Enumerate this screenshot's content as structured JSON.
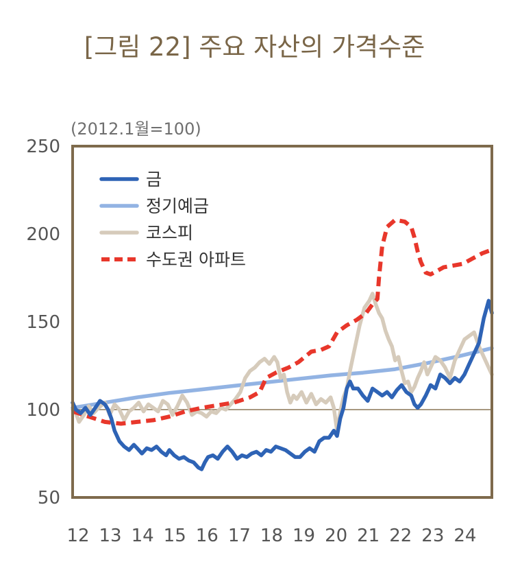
{
  "title": "[그림 22] 주요 자산의 가격수준",
  "unit_note": "(2012.1월=100)",
  "chart_data": {
    "type": "line",
    "title": "[그림 22] 주요 자산의 가격수준",
    "subtitle": "(2012.1월=100)",
    "xlabel": "",
    "ylabel": "",
    "ylim": [
      50,
      250
    ],
    "yticks": [
      50,
      100,
      150,
      200,
      250
    ],
    "xlim": [
      2012,
      2025
    ],
    "xtick_labels": [
      "12",
      "13",
      "14",
      "15",
      "16",
      "17",
      "18",
      "19",
      "20",
      "21",
      "22",
      "23",
      "24"
    ],
    "xtick_values": [
      2012,
      2013,
      2014,
      2015,
      2016,
      2017,
      2018,
      2019,
      2020,
      2021,
      2022,
      2023,
      2024
    ],
    "reference_line": 100,
    "legend_position": "top-left",
    "grid": false,
    "series": [
      {
        "name": "금",
        "color": "#2e63b5",
        "style": "solid",
        "points": [
          [
            2012.0,
            104
          ],
          [
            2012.1,
            100
          ],
          [
            2012.25,
            98
          ],
          [
            2012.4,
            101
          ],
          [
            2012.55,
            97
          ],
          [
            2012.7,
            101
          ],
          [
            2012.85,
            105
          ],
          [
            2013.0,
            103
          ],
          [
            2013.1,
            100
          ],
          [
            2013.2,
            95
          ],
          [
            2013.3,
            88
          ],
          [
            2013.45,
            82
          ],
          [
            2013.6,
            79
          ],
          [
            2013.75,
            77
          ],
          [
            2013.9,
            80
          ],
          [
            2014.0,
            78
          ],
          [
            2014.15,
            75
          ],
          [
            2014.3,
            78
          ],
          [
            2014.45,
            77
          ],
          [
            2014.6,
            79
          ],
          [
            2014.75,
            76
          ],
          [
            2014.9,
            74
          ],
          [
            2015.0,
            77
          ],
          [
            2015.15,
            74
          ],
          [
            2015.3,
            72
          ],
          [
            2015.45,
            73
          ],
          [
            2015.6,
            71
          ],
          [
            2015.75,
            70
          ],
          [
            2015.9,
            67
          ],
          [
            2016.0,
            66
          ],
          [
            2016.1,
            70
          ],
          [
            2016.2,
            73
          ],
          [
            2016.35,
            74
          ],
          [
            2016.5,
            72
          ],
          [
            2016.65,
            76
          ],
          [
            2016.8,
            79
          ],
          [
            2016.95,
            76
          ],
          [
            2017.1,
            72
          ],
          [
            2017.25,
            74
          ],
          [
            2017.4,
            73
          ],
          [
            2017.55,
            75
          ],
          [
            2017.7,
            76
          ],
          [
            2017.85,
            74
          ],
          [
            2018.0,
            77
          ],
          [
            2018.15,
            76
          ],
          [
            2018.3,
            79
          ],
          [
            2018.45,
            78
          ],
          [
            2018.6,
            77
          ],
          [
            2018.75,
            75
          ],
          [
            2018.9,
            73
          ],
          [
            2019.05,
            73
          ],
          [
            2019.2,
            76
          ],
          [
            2019.35,
            78
          ],
          [
            2019.5,
            76
          ],
          [
            2019.65,
            82
          ],
          [
            2019.8,
            84
          ],
          [
            2019.95,
            84
          ],
          [
            2020.1,
            88
          ],
          [
            2020.2,
            85
          ],
          [
            2020.3,
            95
          ],
          [
            2020.4,
            101
          ],
          [
            2020.5,
            112
          ],
          [
            2020.6,
            116
          ],
          [
            2020.7,
            112
          ],
          [
            2020.85,
            112
          ],
          [
            2021.0,
            108
          ],
          [
            2021.15,
            105
          ],
          [
            2021.3,
            112
          ],
          [
            2021.45,
            110
          ],
          [
            2021.6,
            108
          ],
          [
            2021.75,
            110
          ],
          [
            2021.9,
            107
          ],
          [
            2022.05,
            111
          ],
          [
            2022.2,
            114
          ],
          [
            2022.35,
            110
          ],
          [
            2022.5,
            108
          ],
          [
            2022.6,
            103
          ],
          [
            2022.7,
            101
          ],
          [
            2022.8,
            103
          ],
          [
            2022.95,
            108
          ],
          [
            2023.1,
            114
          ],
          [
            2023.25,
            112
          ],
          [
            2023.4,
            120
          ],
          [
            2023.55,
            118
          ],
          [
            2023.7,
            115
          ],
          [
            2023.85,
            118
          ],
          [
            2024.0,
            116
          ],
          [
            2024.15,
            120
          ],
          [
            2024.3,
            126
          ],
          [
            2024.45,
            132
          ],
          [
            2024.6,
            138
          ],
          [
            2024.75,
            152
          ],
          [
            2024.9,
            162
          ],
          [
            2025.0,
            155
          ]
        ]
      },
      {
        "name": "정기예금",
        "color": "#92b3e3",
        "style": "solid",
        "points": [
          [
            2012.0,
            101
          ],
          [
            2013.0,
            104
          ],
          [
            2014.0,
            107
          ],
          [
            2015.0,
            109.5
          ],
          [
            2016.0,
            111.5
          ],
          [
            2017.0,
            113.5
          ],
          [
            2018.0,
            115.5
          ],
          [
            2019.0,
            117.5
          ],
          [
            2020.0,
            119.5
          ],
          [
            2021.0,
            121
          ],
          [
            2022.0,
            123
          ],
          [
            2023.0,
            126.5
          ],
          [
            2024.0,
            130.5
          ],
          [
            2025.0,
            135
          ]
        ]
      },
      {
        "name": "코스피",
        "color": "#d6cbbb",
        "style": "solid",
        "points": [
          [
            2012.0,
            100
          ],
          [
            2012.1,
            98
          ],
          [
            2012.2,
            93
          ],
          [
            2012.35,
            97
          ],
          [
            2012.5,
            102
          ],
          [
            2012.65,
            98
          ],
          [
            2012.8,
            101
          ],
          [
            2013.0,
            104
          ],
          [
            2013.15,
            97
          ],
          [
            2013.3,
            103
          ],
          [
            2013.45,
            100
          ],
          [
            2013.6,
            94
          ],
          [
            2013.75,
            99
          ],
          [
            2013.9,
            101
          ],
          [
            2014.05,
            104
          ],
          [
            2014.2,
            99
          ],
          [
            2014.35,
            103
          ],
          [
            2014.5,
            101
          ],
          [
            2014.65,
            99
          ],
          [
            2014.8,
            105
          ],
          [
            2014.95,
            103
          ],
          [
            2015.1,
            97
          ],
          [
            2015.25,
            102
          ],
          [
            2015.4,
            108
          ],
          [
            2015.55,
            104
          ],
          [
            2015.7,
            97
          ],
          [
            2015.85,
            99
          ],
          [
            2016.0,
            98
          ],
          [
            2016.15,
            96
          ],
          [
            2016.3,
            99
          ],
          [
            2016.45,
            98
          ],
          [
            2016.6,
            101
          ],
          [
            2016.75,
            100
          ],
          [
            2016.9,
            103
          ],
          [
            2017.05,
            106
          ],
          [
            2017.2,
            110
          ],
          [
            2017.35,
            118
          ],
          [
            2017.5,
            122
          ],
          [
            2017.65,
            124
          ],
          [
            2017.8,
            127
          ],
          [
            2017.95,
            129
          ],
          [
            2018.1,
            126
          ],
          [
            2018.25,
            130
          ],
          [
            2018.35,
            127
          ],
          [
            2018.45,
            118
          ],
          [
            2018.55,
            120
          ],
          [
            2018.65,
            110
          ],
          [
            2018.75,
            104
          ],
          [
            2018.85,
            108
          ],
          [
            2018.95,
            106
          ],
          [
            2019.1,
            110
          ],
          [
            2019.25,
            104
          ],
          [
            2019.4,
            109
          ],
          [
            2019.55,
            103
          ],
          [
            2019.7,
            106
          ],
          [
            2019.85,
            104
          ],
          [
            2020.0,
            107
          ],
          [
            2020.1,
            101
          ],
          [
            2020.2,
            88
          ],
          [
            2020.3,
            99
          ],
          [
            2020.4,
            107
          ],
          [
            2020.5,
            112
          ],
          [
            2020.6,
            122
          ],
          [
            2020.75,
            135
          ],
          [
            2020.9,
            148
          ],
          [
            2021.05,
            158
          ],
          [
            2021.2,
            162
          ],
          [
            2021.3,
            166
          ],
          [
            2021.4,
            160
          ],
          [
            2021.5,
            155
          ],
          [
            2021.6,
            152
          ],
          [
            2021.7,
            145
          ],
          [
            2021.8,
            140
          ],
          [
            2021.9,
            136
          ],
          [
            2022.0,
            128
          ],
          [
            2022.1,
            130
          ],
          [
            2022.2,
            122
          ],
          [
            2022.3,
            115
          ],
          [
            2022.4,
            116
          ],
          [
            2022.5,
            110
          ],
          [
            2022.6,
            113
          ],
          [
            2022.7,
            118
          ],
          [
            2022.8,
            122
          ],
          [
            2022.9,
            127
          ],
          [
            2023.0,
            120
          ],
          [
            2023.1,
            124
          ],
          [
            2023.25,
            130
          ],
          [
            2023.4,
            128
          ],
          [
            2023.55,
            124
          ],
          [
            2023.7,
            118
          ],
          [
            2023.85,
            128
          ],
          [
            2024.0,
            134
          ],
          [
            2024.15,
            140
          ],
          [
            2024.3,
            142
          ],
          [
            2024.45,
            144
          ],
          [
            2024.6,
            136
          ],
          [
            2024.75,
            130
          ],
          [
            2024.9,
            124
          ],
          [
            2025.0,
            120
          ]
        ]
      },
      {
        "name": "수도권 아파트",
        "color": "#e8372b",
        "style": "dashed",
        "points": [
          [
            2012.0,
            99
          ],
          [
            2012.5,
            96
          ],
          [
            2013.0,
            93
          ],
          [
            2013.5,
            92
          ],
          [
            2014.0,
            93
          ],
          [
            2014.5,
            94
          ],
          [
            2015.0,
            96
          ],
          [
            2015.5,
            99
          ],
          [
            2016.0,
            101
          ],
          [
            2016.5,
            102.5
          ],
          [
            2017.0,
            104
          ],
          [
            2017.5,
            107
          ],
          [
            2017.8,
            110
          ],
          [
            2018.0,
            118
          ],
          [
            2018.3,
            121
          ],
          [
            2018.7,
            124
          ],
          [
            2019.0,
            127
          ],
          [
            2019.2,
            130
          ],
          [
            2019.4,
            133
          ],
          [
            2019.7,
            134
          ],
          [
            2019.95,
            136
          ],
          [
            2020.2,
            144
          ],
          [
            2020.5,
            148
          ],
          [
            2020.8,
            151
          ],
          [
            2021.1,
            155
          ],
          [
            2021.3,
            160
          ],
          [
            2021.45,
            163
          ],
          [
            2021.5,
            175
          ],
          [
            2021.6,
            193
          ],
          [
            2021.75,
            204
          ],
          [
            2022.0,
            208
          ],
          [
            2022.3,
            207
          ],
          [
            2022.5,
            204
          ],
          [
            2022.6,
            198
          ],
          [
            2022.7,
            190
          ],
          [
            2022.8,
            184
          ],
          [
            2022.95,
            178
          ],
          [
            2023.1,
            177
          ],
          [
            2023.3,
            179
          ],
          [
            2023.5,
            181
          ],
          [
            2023.8,
            182
          ],
          [
            2024.1,
            183
          ],
          [
            2024.4,
            186
          ],
          [
            2024.7,
            189
          ],
          [
            2025.0,
            191
          ]
        ]
      }
    ]
  }
}
